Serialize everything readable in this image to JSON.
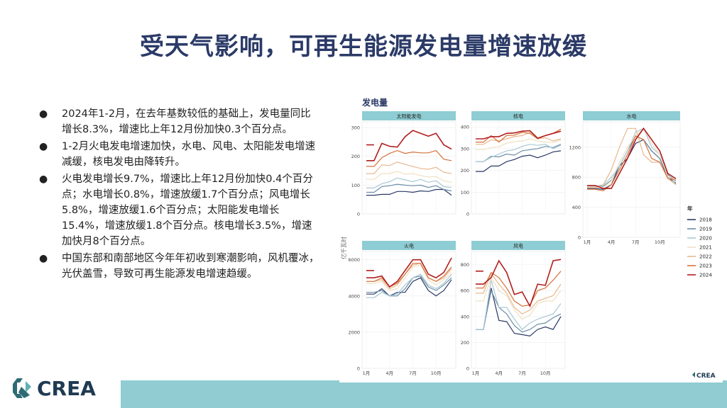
{
  "slide": {
    "title": "受天气影响，可再生能源发电量增速放缓",
    "bullets": [
      "2024年1-2月，在去年基数较低的基础上，发电量同比增长8.3%，增速比上年12月份加快0.3个百分点。",
      "1-2月火电发电增速加快，水电、风电、太阳能发电增速减缓，核电发电由降转升。",
      "火电发电增长9.7%，增速比上年12月份加快0.4个百分点；水电增长0.8%，增速放缓1.7个百分点；风电增长5.8%，增速放缓1.6个百分点；太阳能发电增长15.4%，增速放缓1.8个百分点。核电增长3.5%，增速加快月8个百分点。",
      "中国东部和南部地区今年年初收到寒潮影响，风机覆冰，光伏盖雪，导致可再生能源发电增速趋缓。"
    ],
    "bullet_symbol": "●",
    "logo_text": "CREA",
    "colors": {
      "title": "#2b3a67",
      "band": "#90ccd2",
      "facet_strip": "#8ecdd3"
    }
  },
  "chart_data": {
    "type": "line",
    "title": "发电量",
    "ylabel": "亿千瓦时",
    "x_ticks": [
      "1月",
      "4月",
      "7月",
      "10月"
    ],
    "x": [
      1,
      2,
      3,
      4,
      5,
      6,
      7,
      8,
      9,
      10,
      11,
      12
    ],
    "legend_title": "年",
    "watermark": "CREA",
    "series_colors": {
      "2018": "#2a3a66",
      "2019": "#6b8fa8",
      "2020": "#a9c8d4",
      "2021": "#efe0c4",
      "2022": "#e7b88f",
      "2023": "#d4723a",
      "2024": "#b21e1e"
    },
    "facets": [
      {
        "name": "太阳能发电",
        "yticks": [
          100,
          200,
          300
        ],
        "ylim": [
          0,
          310
        ],
        "series": {
          "2018": [
            65,
            65,
            68,
            68,
            78,
            78,
            75,
            80,
            78,
            85,
            85,
            65
          ],
          "2019": [
            75,
            75,
            95,
            98,
            103,
            100,
            98,
            100,
            92,
            98,
            85,
            80
          ],
          "2020": [
            90,
            90,
            105,
            112,
            125,
            118,
            112,
            120,
            110,
            115,
            95,
            92
          ],
          "2021": [
            120,
            120,
            140,
            140,
            148,
            138,
            140,
            133,
            128,
            130,
            115,
            110
          ],
          "2022": [
            140,
            140,
            170,
            168,
            180,
            172,
            165,
            158,
            155,
            162,
            145,
            140
          ],
          "2023": [
            165,
            165,
            195,
            210,
            220,
            210,
            215,
            212,
            212,
            220,
            190,
            185
          ],
          "2024": [
            240,
            240,
            null,
            null,
            null,
            null,
            null,
            null,
            null,
            null,
            null,
            null
          ]
        },
        "series_extra_2024_2023": [
          185,
          185,
          245,
          235,
          232,
          268,
          290,
          280,
          270,
          280,
          240,
          225
        ]
      },
      {
        "name": "核电",
        "yticks": [
          100,
          200,
          300,
          400
        ],
        "ylim": [
          0,
          410
        ],
        "series": {
          "2018": [
            195,
            195,
            220,
            220,
            240,
            250,
            265,
            270,
            258,
            270,
            285,
            290
          ],
          "2019": [
            240,
            240,
            265,
            262,
            275,
            270,
            290,
            295,
            300,
            310,
            305,
            320
          ],
          "2020": [
            240,
            240,
            260,
            275,
            290,
            295,
            310,
            320,
            315,
            320,
            300,
            315
          ],
          "2021": [
            295,
            295,
            305,
            308,
            325,
            332,
            335,
            345,
            335,
            330,
            328,
            340
          ],
          "2022": [
            320,
            320,
            340,
            335,
            345,
            355,
            360,
            375,
            345,
            350,
            335,
            345
          ],
          "2023": [
            330,
            330,
            360,
            330,
            360,
            362,
            375,
            370,
            345,
            360,
            370,
            390
          ],
          "2024": [
            345,
            345,
            355,
            355,
            370,
            372,
            380,
            382,
            348,
            360,
            370,
            380
          ]
        }
      },
      {
        "name": "水电",
        "yticks": [
          400,
          800,
          1200
        ],
        "ylim": [
          0,
          1500
        ],
        "series": {
          "2018": [
            650,
            650,
            640,
            700,
            950,
            1050,
            1250,
            1300,
            1150,
            1050,
            800,
            720
          ],
          "2019": [
            680,
            680,
            680,
            760,
            950,
            1150,
            1350,
            1300,
            1150,
            1050,
            830,
            750
          ],
          "2020": [
            680,
            680,
            700,
            800,
            950,
            1150,
            1400,
            1450,
            1200,
            1100,
            850,
            700
          ],
          "2021": [
            670,
            670,
            660,
            750,
            1000,
            1200,
            1350,
            1450,
            1250,
            1100,
            800,
            760
          ],
          "2022": [
            660,
            660,
            700,
            900,
            1200,
            1450,
            1450,
            1100,
            1000,
            1000,
            780,
            700
          ],
          "2023": [
            640,
            640,
            620,
            700,
            900,
            1100,
            1350,
            1300,
            1050,
            1000,
            790,
            760
          ],
          "2024": [
            690,
            690,
            650,
            650,
            850,
            1050,
            1300,
            1450,
            1300,
            1150,
            850,
            780
          ]
        }
      },
      {
        "name": "火电",
        "yticks": [
          2000,
          4000,
          6000
        ],
        "ylim": [
          0,
          6300
        ],
        "series": {
          "2018": [
            4100,
            4100,
            4400,
            4000,
            4200,
            4200,
            4800,
            5000,
            4300,
            4000,
            4300,
            4900
          ],
          "2019": [
            4200,
            4200,
            4300,
            4000,
            4000,
            4400,
            5000,
            5100,
            4500,
            4300,
            4600,
            5000
          ],
          "2020": [
            3900,
            3900,
            4200,
            4000,
            4100,
            4600,
            5000,
            5200,
            4600,
            4400,
            4700,
            5200
          ],
          "2021": [
            4700,
            4700,
            4800,
            4300,
            4400,
            5000,
            5600,
            5700,
            4900,
            4600,
            4900,
            5300
          ],
          "2022": [
            4800,
            4800,
            4900,
            4400,
            4600,
            5200,
            5700,
            5800,
            5000,
            4800,
            5000,
            5500
          ],
          "2023": [
            4800,
            4800,
            5000,
            4500,
            4700,
            5200,
            5800,
            5800,
            5000,
            4800,
            5100,
            5600
          ],
          "2024": [
            5000,
            5000,
            5100,
            4500,
            4800,
            5400,
            6000,
            6000,
            5200,
            5000,
            5300,
            6100
          ]
        },
        "series_2024_start": [
          5400,
          5400
        ]
      },
      {
        "name": "风电",
        "yticks": [
          200,
          400,
          600,
          800
        ],
        "ylim": [
          0,
          880
        ],
        "series": {
          "2018": [
            300,
            300,
            620,
            370,
            360,
            270,
            260,
            250,
            300,
            320,
            300,
            400
          ],
          "2019": [
            300,
            300,
            600,
            470,
            420,
            330,
            280,
            300,
            340,
            350,
            390,
            420
          ],
          "2020": [
            300,
            300,
            680,
            470,
            470,
            380,
            300,
            350,
            380,
            400,
            420,
            500
          ],
          "2021": [
            520,
            520,
            700,
            600,
            560,
            450,
            380,
            410,
            500,
            520,
            520,
            600
          ],
          "2022": [
            580,
            580,
            730,
            650,
            580,
            470,
            420,
            450,
            520,
            540,
            560,
            650
          ],
          "2023": [
            620,
            620,
            740,
            700,
            620,
            520,
            480,
            490,
            600,
            620,
            680,
            750
          ],
          "2024": [
            650,
            650,
            700,
            830,
            740,
            570,
            590,
            480,
            650,
            640,
            830,
            840
          ]
        },
        "series_2024_start": [
          750,
          750
        ]
      }
    ]
  }
}
